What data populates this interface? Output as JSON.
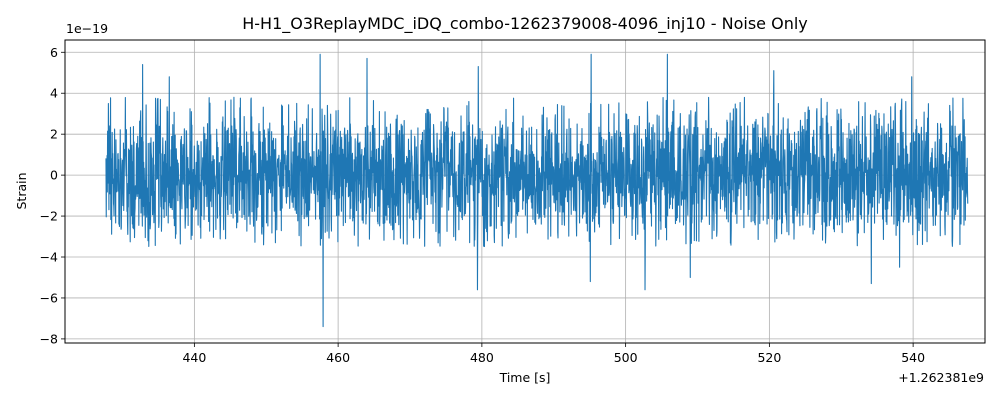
{
  "chart_data": {
    "type": "line",
    "title": "H-H1_O3ReplayMDC_iDQ_combo-1262379008-4096_inj10 - Noise Only",
    "xlabel": "Time [s]",
    "ylabel": "Strain",
    "x_offset_text": "+1.262381e9",
    "y_scale_text": "1e−19",
    "xlim": [
      422,
      550
    ],
    "ylim": [
      -8.2,
      6.6
    ],
    "x_ticks": [
      440,
      460,
      480,
      500,
      520,
      540
    ],
    "y_ticks": [
      -8,
      -6,
      -4,
      -2,
      0,
      2,
      4,
      6
    ],
    "x_tick_labels": [
      "440",
      "460",
      "480",
      "500",
      "520",
      "540"
    ],
    "y_tick_labels": [
      "−8",
      "−6",
      "−4",
      "−2",
      "0",
      "2",
      "4",
      "6"
    ],
    "grid": true,
    "line_color": "#1f77b4",
    "series": [
      {
        "x_range": [
          427.7,
          547.6
        ],
        "typical_envelope": [
          -2.5,
          2.5
        ],
        "values": [
          {
            "x": 432.8,
            "y": 5.4
          },
          {
            "x": 436.5,
            "y": 4.8
          },
          {
            "x": 445.5,
            "y": 3.8
          },
          {
            "x": 457.5,
            "y": 5.9
          },
          {
            "x": 457.9,
            "y": -7.4
          },
          {
            "x": 464.0,
            "y": 5.7
          },
          {
            "x": 479.4,
            "y": -5.6
          },
          {
            "x": 479.5,
            "y": 5.3
          },
          {
            "x": 495.2,
            "y": 5.9
          },
          {
            "x": 495.1,
            "y": -5.2
          },
          {
            "x": 502.7,
            "y": -5.6
          },
          {
            "x": 505.8,
            "y": 5.9
          },
          {
            "x": 509.0,
            "y": -5.0
          },
          {
            "x": 520.6,
            "y": 5.1
          },
          {
            "x": 534.2,
            "y": -5.3
          },
          {
            "x": 538.1,
            "y": -4.5
          },
          {
            "x": 539.8,
            "y": 4.8
          }
        ]
      }
    ]
  }
}
